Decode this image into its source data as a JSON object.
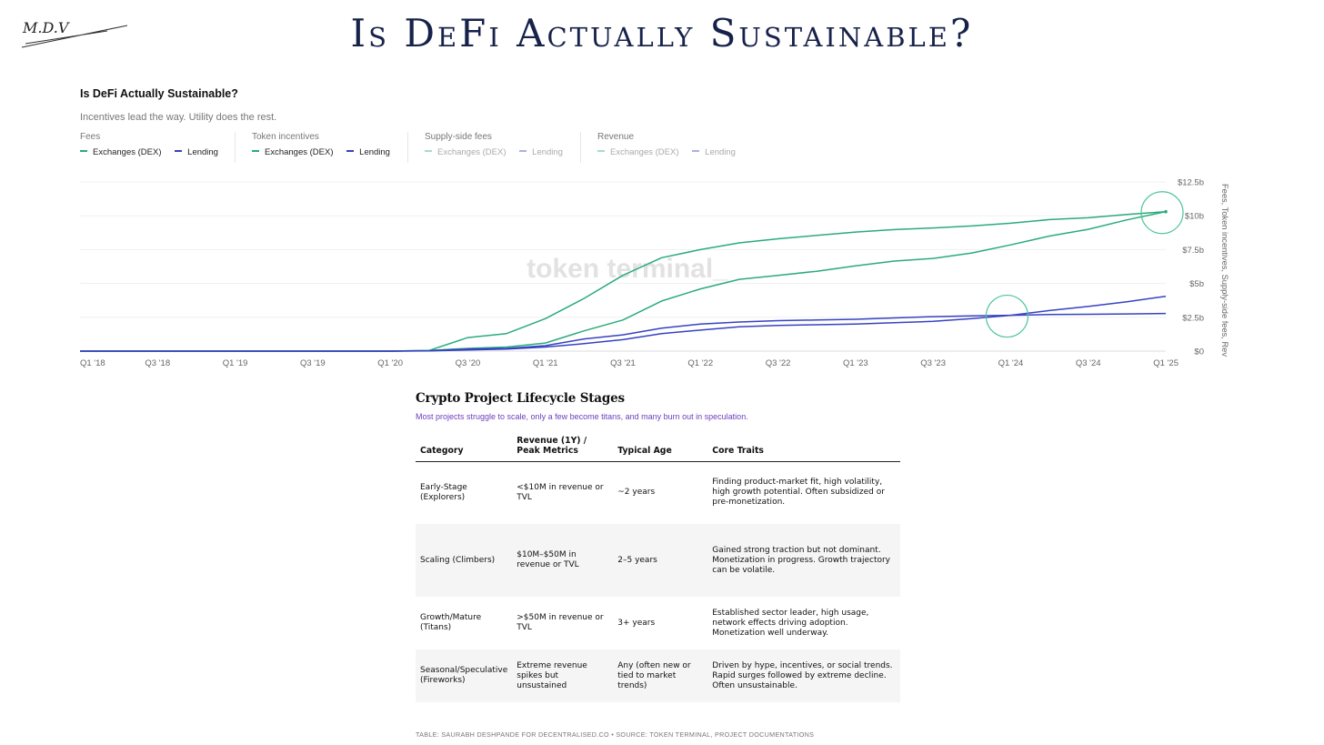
{
  "header": {
    "logo_text": "M.D.V",
    "title": "Is DeFi Actually Sustainable?"
  },
  "colors": {
    "dex_green": "#2bab7c",
    "lending_blue": "#3642c2",
    "highlight_circle": "#4cc49a",
    "title_navy": "#17224a",
    "subtitle_purple": "#6b3fc0"
  },
  "chart_data": {
    "type": "line",
    "title": "Is DeFi Actually Sustainable?",
    "subtitle": "Incentives lead the way. Utility does the rest.",
    "watermark": "token terminal_",
    "ylabel": "Fees, Token incentives, Supply-side fees, Revenue",
    "ylim": [
      0,
      12.5
    ],
    "y_ticks": [
      "$0",
      "$2.5b",
      "$5b",
      "$7.5b",
      "$10b",
      "$12.5b"
    ],
    "x_ticks": [
      "Q1 '18",
      "Q3 '18",
      "Q1 '19",
      "Q3 '19",
      "Q1 '20",
      "Q3 '20",
      "Q1 '21",
      "Q3 '21",
      "Q1 '22",
      "Q3 '22",
      "Q1 '23",
      "Q3 '23",
      "Q1 '24",
      "Q3 '24",
      "Q1 '25"
    ],
    "grid": true,
    "legend_groups": [
      {
        "label": "Fees",
        "items": [
          {
            "name": "Exchanges (DEX)",
            "color": "#2bab7c"
          },
          {
            "name": "Lending",
            "color": "#3642c2"
          }
        ],
        "active": true
      },
      {
        "label": "Token incentives",
        "items": [
          {
            "name": "Exchanges (DEX)",
            "color": "#2bab7c"
          },
          {
            "name": "Lending",
            "color": "#3642c2"
          }
        ],
        "active": true
      },
      {
        "label": "Supply-side fees",
        "items": [
          {
            "name": "Exchanges (DEX)",
            "color": "#a9dcc8"
          },
          {
            "name": "Lending",
            "color": "#aab0e6"
          }
        ],
        "active": false
      },
      {
        "label": "Revenue",
        "items": [
          {
            "name": "Exchanges (DEX)",
            "color": "#a9dcc8"
          },
          {
            "name": "Lending",
            "color": "#aab0e6"
          }
        ],
        "active": false
      }
    ],
    "series": [
      {
        "color": "#2bab7c",
        "points": [
          [
            0,
            0
          ],
          [
            1,
            0
          ],
          [
            2,
            0
          ],
          [
            3,
            0
          ],
          [
            4,
            0
          ],
          [
            4.5,
            0.05
          ],
          [
            5,
            1.0
          ],
          [
            5.5,
            1.3
          ],
          [
            6,
            2.4
          ],
          [
            6.5,
            3.9
          ],
          [
            7,
            5.6
          ],
          [
            7.5,
            6.9
          ],
          [
            8,
            7.5
          ],
          [
            8.5,
            8.0
          ],
          [
            9,
            8.3
          ],
          [
            9.5,
            8.55
          ],
          [
            10,
            8.8
          ],
          [
            10.5,
            8.98
          ],
          [
            11,
            9.1
          ],
          [
            11.5,
            9.25
          ],
          [
            12,
            9.45
          ],
          [
            12.5,
            9.72
          ],
          [
            13,
            9.85
          ],
          [
            13.5,
            10.1
          ],
          [
            14,
            10.3
          ]
        ]
      },
      {
        "color": "#2bab7c",
        "points": [
          [
            0,
            0
          ],
          [
            1,
            0
          ],
          [
            2,
            0
          ],
          [
            3,
            0
          ],
          [
            4,
            0
          ],
          [
            4.5,
            0.05
          ],
          [
            5,
            0.2
          ],
          [
            5.5,
            0.3
          ],
          [
            6,
            0.6
          ],
          [
            6.5,
            1.5
          ],
          [
            7,
            2.3
          ],
          [
            7.5,
            3.7
          ],
          [
            8,
            4.6
          ],
          [
            8.5,
            5.3
          ],
          [
            9,
            5.6
          ],
          [
            9.5,
            5.9
          ],
          [
            10,
            6.3
          ],
          [
            10.5,
            6.65
          ],
          [
            11,
            6.85
          ],
          [
            11.5,
            7.25
          ],
          [
            12,
            7.85
          ],
          [
            12.5,
            8.5
          ],
          [
            13,
            9.0
          ],
          [
            13.5,
            9.7
          ],
          [
            14,
            10.3
          ]
        ]
      },
      {
        "color": "#3642c2",
        "points": [
          [
            0,
            0
          ],
          [
            1,
            0
          ],
          [
            2,
            0
          ],
          [
            3,
            0
          ],
          [
            4,
            0
          ],
          [
            4.5,
            0.03
          ],
          [
            5,
            0.15
          ],
          [
            5.5,
            0.2
          ],
          [
            6,
            0.4
          ],
          [
            6.5,
            0.9
          ],
          [
            7,
            1.2
          ],
          [
            7.5,
            1.7
          ],
          [
            8,
            2.0
          ],
          [
            8.5,
            2.15
          ],
          [
            9,
            2.25
          ],
          [
            9.5,
            2.3
          ],
          [
            10,
            2.35
          ],
          [
            10.5,
            2.45
          ],
          [
            11,
            2.55
          ],
          [
            11.5,
            2.6
          ],
          [
            12,
            2.65
          ],
          [
            12.5,
            2.7
          ],
          [
            13,
            2.72
          ],
          [
            13.5,
            2.75
          ],
          [
            14,
            2.78
          ]
        ]
      },
      {
        "color": "#3642c2",
        "points": [
          [
            0,
            0
          ],
          [
            1,
            0
          ],
          [
            2,
            0
          ],
          [
            3,
            0
          ],
          [
            4,
            0
          ],
          [
            4.5,
            0.02
          ],
          [
            5,
            0.08
          ],
          [
            5.5,
            0.15
          ],
          [
            6,
            0.3
          ],
          [
            6.5,
            0.55
          ],
          [
            7,
            0.85
          ],
          [
            7.5,
            1.3
          ],
          [
            8,
            1.55
          ],
          [
            8.5,
            1.8
          ],
          [
            9,
            1.9
          ],
          [
            9.5,
            1.95
          ],
          [
            10,
            2.0
          ],
          [
            10.5,
            2.1
          ],
          [
            11,
            2.2
          ],
          [
            11.5,
            2.4
          ],
          [
            12,
            2.65
          ],
          [
            12.5,
            3.0
          ],
          [
            13,
            3.3
          ],
          [
            13.5,
            3.65
          ],
          [
            14,
            4.05
          ]
        ]
      }
    ],
    "highlight_markers": [
      {
        "x": 14,
        "y": 10.3
      },
      {
        "x": 12,
        "y": 2.65
      }
    ]
  },
  "table": {
    "title": "Crypto Project Lifecycle Stages",
    "subtitle": "Most projects struggle to scale, only a few become titans, and many burn out in speculation.",
    "headers": [
      "Category",
      "Revenue (1Y) / Peak Metrics",
      "Typical Age",
      "Core Traits"
    ],
    "rows": [
      [
        "Early-Stage (Explorers)",
        "<$10M in revenue or TVL",
        "~2 years",
        "Finding product-market fit, high volatility, high growth potential. Often subsidized or pre-monetization."
      ],
      [
        "Scaling (Climbers)",
        "$10M–$50M in revenue or TVL",
        "2–5 years",
        "Gained strong traction but not dominant. Monetization in progress. Growth trajectory can be volatile."
      ],
      [
        "Growth/Mature (Titans)",
        ">$50M in revenue or TVL",
        "3+ years",
        "Established sector leader, high usage, network effects driving adoption. Monetization well underway."
      ],
      [
        "Seasonal/Speculative (Fireworks)",
        "Extreme revenue spikes but unsustained",
        "Any (often new or tied to market trends)",
        "Driven by hype, incentives, or social trends. Rapid surges followed by extreme decline. Often unsustainable."
      ]
    ],
    "source": "TABLE: SAURABH DESHPANDE FOR DECENTRALISED.CO • SOURCE: TOKEN TERMINAL, PROJECT DOCUMENTATIONS"
  }
}
